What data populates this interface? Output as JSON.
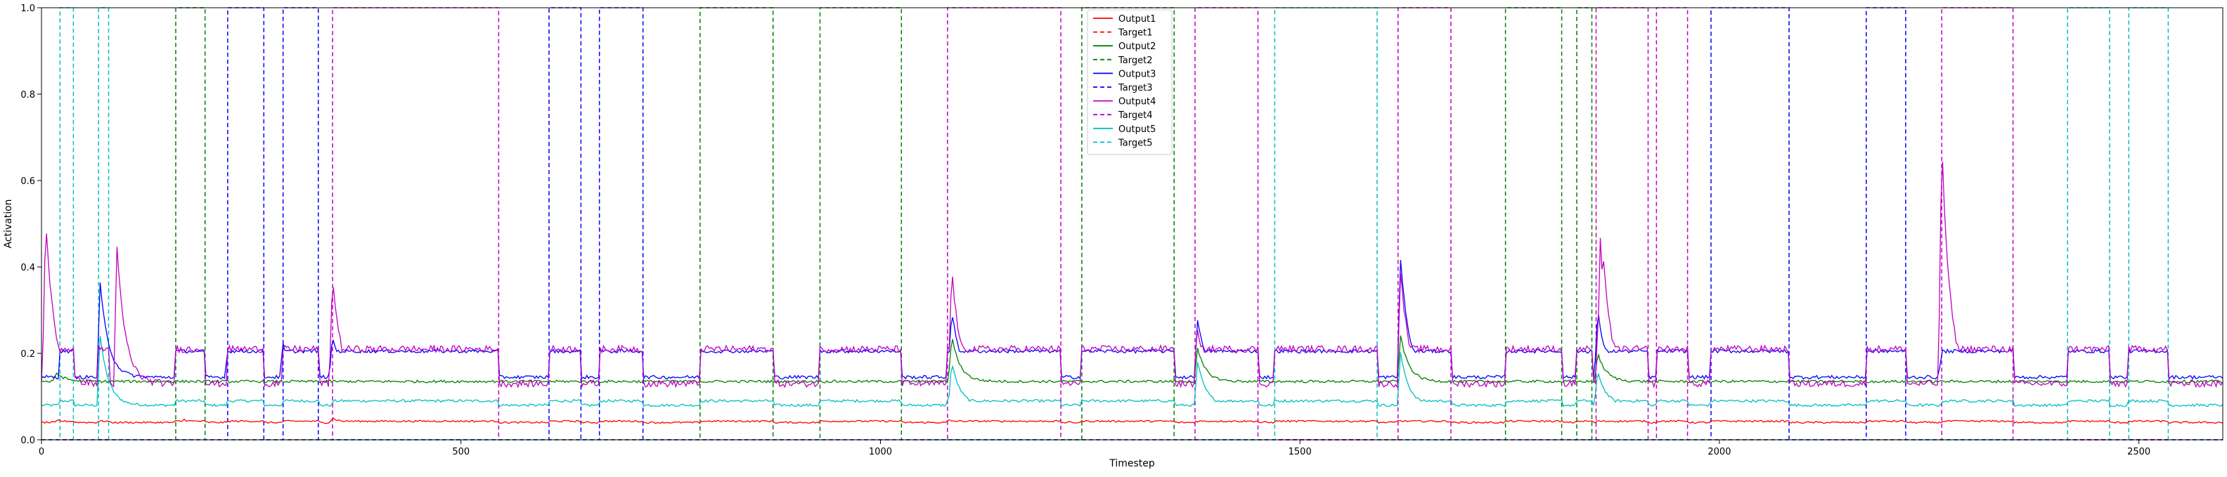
{
  "chart_data": {
    "type": "line",
    "title": "",
    "xlabel": "Timestep",
    "ylabel": "Activation",
    "xlim": [
      0,
      2600
    ],
    "ylim": [
      0,
      1.0
    ],
    "x_ticks": [
      0,
      500,
      1000,
      1500,
      2000,
      2500
    ],
    "y_ticks": [
      0.0,
      0.2,
      0.4,
      0.6,
      0.8,
      1.0
    ],
    "x_tick_labels": [
      "0",
      "500",
      "1000",
      "1500",
      "2000",
      "2500"
    ],
    "y_tick_labels": [
      "0.0",
      "0.2",
      "0.4",
      "0.6",
      "0.8",
      "1.0"
    ],
    "grid": false,
    "legend_position": "top-center",
    "colors": {
      "series1": "#ff0000",
      "series2": "#008000",
      "series3": "#0000ff",
      "series4": "#c000c0",
      "series5": "#00bfbf"
    },
    "legend": [
      {
        "label": "Output1",
        "color": "#ff0000",
        "style": "solid"
      },
      {
        "label": "Target1",
        "color": "#ff0000",
        "style": "dashed"
      },
      {
        "label": "Output2",
        "color": "#008000",
        "style": "solid"
      },
      {
        "label": "Target2",
        "color": "#008000",
        "style": "dashed"
      },
      {
        "label": "Output3",
        "color": "#0000ff",
        "style": "solid"
      },
      {
        "label": "Target3",
        "color": "#0000ff",
        "style": "dashed"
      },
      {
        "label": "Output4",
        "color": "#c000c0",
        "style": "solid"
      },
      {
        "label": "Target4",
        "color": "#c000c0",
        "style": "dashed"
      },
      {
        "label": "Output5",
        "color": "#00bfbf",
        "style": "solid"
      },
      {
        "label": "Target5",
        "color": "#00bfbf",
        "style": "dashed"
      }
    ],
    "target_intervals": {
      "Target1": [],
      "Target2": [
        [
          160,
          195
        ],
        [
          785,
          872
        ],
        [
          928,
          1025
        ],
        [
          1240,
          1350
        ],
        [
          1745,
          1812
        ],
        [
          1830,
          1848
        ]
      ],
      "Target3": [
        [
          222,
          265
        ],
        [
          288,
          330
        ],
        [
          605,
          643
        ],
        [
          665,
          717
        ],
        [
          1990,
          2083
        ],
        [
          2175,
          2222
        ]
      ],
      "Target4": [
        [
          347,
          545
        ],
        [
          1080,
          1215
        ],
        [
          1375,
          1450
        ],
        [
          1617,
          1680
        ],
        [
          1853,
          1915
        ],
        [
          1925,
          1962
        ],
        [
          2265,
          2350
        ]
      ],
      "Target5": [
        [
          22,
          38
        ],
        [
          68,
          80
        ],
        [
          1470,
          1592
        ],
        [
          2415,
          2465
        ],
        [
          2488,
          2535
        ]
      ]
    },
    "output_baselines": {
      "Output1": 0.04,
      "Output2": 0.135,
      "Output3": 0.145,
      "Output4": 0.13,
      "Output5": 0.08
    },
    "output_peaks": {
      "Output1": [
        [
          20,
          0.045
        ],
        [
          170,
          0.047
        ],
        [
          347,
          0.05
        ],
        [
          1082,
          0.045
        ],
        [
          1618,
          0.045
        ]
      ],
      "Output2": [
        [
          18,
          0.155
        ],
        [
          1085,
          0.24
        ],
        [
          1378,
          0.21
        ],
        [
          1620,
          0.24
        ],
        [
          1855,
          0.2
        ]
      ],
      "Output3": [
        [
          70,
          0.36
        ],
        [
          222,
          0.2
        ],
        [
          288,
          0.22
        ],
        [
          347,
          0.24
        ],
        [
          1085,
          0.3
        ],
        [
          1378,
          0.28
        ],
        [
          1620,
          0.42
        ],
        [
          1855,
          0.3
        ],
        [
          2265,
          0.2
        ]
      ],
      "Output4": [
        [
          5,
          0.52
        ],
        [
          90,
          0.44
        ],
        [
          347,
          0.38
        ],
        [
          1085,
          0.4
        ],
        [
          1378,
          0.25
        ],
        [
          1620,
          0.39
        ],
        [
          1858,
          0.46
        ],
        [
          1862,
          0.42
        ],
        [
          2265,
          0.69
        ]
      ],
      "Output5": [
        [
          20,
          0.08
        ],
        [
          70,
          0.24
        ],
        [
          1085,
          0.18
        ],
        [
          1378,
          0.18
        ],
        [
          1620,
          0.2
        ],
        [
          1855,
          0.16
        ]
      ]
    }
  }
}
